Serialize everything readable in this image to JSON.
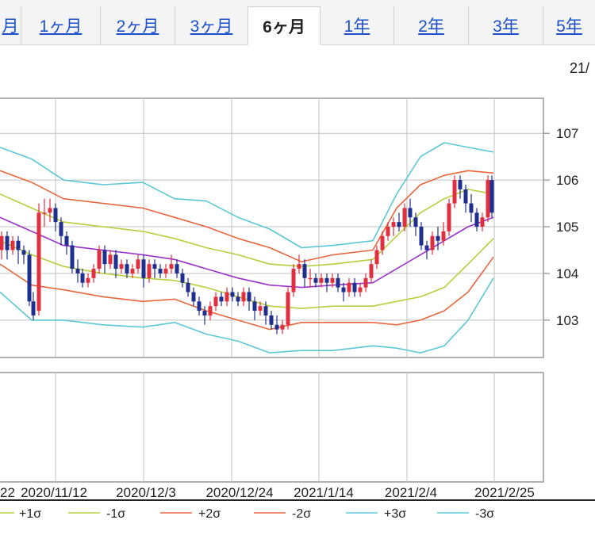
{
  "tabs": [
    {
      "label": "月",
      "active": false
    },
    {
      "label": "1ヶ月",
      "active": false
    },
    {
      "label": "2ヶ月",
      "active": false
    },
    {
      "label": "3ヶ月",
      "active": false
    },
    {
      "label": "6ヶ月",
      "active": true
    },
    {
      "label": "1年",
      "active": false
    },
    {
      "label": "2年",
      "active": false
    },
    {
      "label": "3年",
      "active": false
    },
    {
      "label": "5年",
      "active": false
    }
  ],
  "corner_date": "21/",
  "chart_data": {
    "type": "candlestick",
    "y_ticks": [
      "107",
      "106",
      "105",
      "104",
      "103"
    ],
    "ylim": [
      102.2,
      107.75
    ],
    "x_ticks": [
      "22",
      "2020/11/12",
      "2020/12/3",
      "2020/12/24",
      "2021/1/14",
      "2021/2/4",
      "2021/2/25"
    ],
    "grid": true,
    "legend": [
      {
        "label": "+1σ",
        "color": "#b7cf3c"
      },
      {
        "label": "-1σ",
        "color": "#b7cf3c"
      },
      {
        "label": "+2σ",
        "color": "#e8663d"
      },
      {
        "label": "-2σ",
        "color": "#e8663d"
      },
      {
        "label": "+3σ",
        "color": "#5cc8d6"
      },
      {
        "label": "-3σ",
        "color": "#5cc8d6"
      }
    ],
    "colors": {
      "up": "#e03040",
      "down": "#1f2f8f",
      "ma": "#9933cc",
      "grid": "#c0c0c0"
    },
    "bands": {
      "ma": [
        [
          0,
          105.2
        ],
        [
          40,
          104.9
        ],
        [
          80,
          104.6
        ],
        [
          130,
          104.5
        ],
        [
          180,
          104.4
        ],
        [
          220,
          104.3
        ],
        [
          260,
          104.1
        ],
        [
          300,
          103.9
        ],
        [
          340,
          103.75
        ],
        [
          380,
          103.7
        ],
        [
          420,
          103.75
        ],
        [
          470,
          103.8
        ],
        [
          500,
          104.1
        ],
        [
          530,
          104.4
        ],
        [
          560,
          104.7
        ],
        [
          590,
          105.0
        ],
        [
          622,
          105.2
        ]
      ],
      "up1": [
        [
          0,
          105.7
        ],
        [
          40,
          105.4
        ],
        [
          80,
          105.1
        ],
        [
          130,
          105.0
        ],
        [
          180,
          104.9
        ],
        [
          220,
          104.75
        ],
        [
          260,
          104.55
        ],
        [
          300,
          104.4
        ],
        [
          340,
          104.2
        ],
        [
          380,
          104.15
        ],
        [
          420,
          104.2
        ],
        [
          470,
          104.3
        ],
        [
          500,
          104.8
        ],
        [
          530,
          105.3
        ],
        [
          560,
          105.6
        ],
        [
          590,
          105.8
        ],
        [
          622,
          105.7
        ]
      ],
      "dn1": [
        [
          0,
          104.7
        ],
        [
          40,
          104.4
        ],
        [
          80,
          104.15
        ],
        [
          130,
          104.0
        ],
        [
          180,
          103.9
        ],
        [
          220,
          103.85
        ],
        [
          260,
          103.7
        ],
        [
          300,
          103.5
        ],
        [
          340,
          103.3
        ],
        [
          380,
          103.25
        ],
        [
          420,
          103.3
        ],
        [
          470,
          103.3
        ],
        [
          500,
          103.4
        ],
        [
          530,
          103.5
        ],
        [
          560,
          103.7
        ],
        [
          590,
          104.2
        ],
        [
          622,
          104.75
        ]
      ],
      "up2": [
        [
          0,
          106.2
        ],
        [
          40,
          105.95
        ],
        [
          80,
          105.6
        ],
        [
          130,
          105.5
        ],
        [
          180,
          105.4
        ],
        [
          220,
          105.2
        ],
        [
          260,
          105.0
        ],
        [
          300,
          104.75
        ],
        [
          340,
          104.55
        ],
        [
          380,
          104.25
        ],
        [
          420,
          104.4
        ],
        [
          470,
          104.5
        ],
        [
          500,
          105.4
        ],
        [
          530,
          105.9
        ],
        [
          560,
          106.1
        ],
        [
          590,
          106.2
        ],
        [
          622,
          106.15
        ]
      ],
      "dn2": [
        [
          0,
          104.2
        ],
        [
          40,
          103.75
        ],
        [
          80,
          103.65
        ],
        [
          130,
          103.5
        ],
        [
          180,
          103.4
        ],
        [
          220,
          103.45
        ],
        [
          260,
          103.2
        ],
        [
          300,
          103.0
        ],
        [
          340,
          102.8
        ],
        [
          380,
          102.95
        ],
        [
          420,
          102.95
        ],
        [
          470,
          102.95
        ],
        [
          500,
          102.9
        ],
        [
          530,
          103.0
        ],
        [
          560,
          103.2
        ],
        [
          590,
          103.6
        ],
        [
          622,
          104.35
        ]
      ],
      "up3": [
        [
          0,
          106.7
        ],
        [
          40,
          106.45
        ],
        [
          80,
          106.0
        ],
        [
          130,
          105.9
        ],
        [
          180,
          105.95
        ],
        [
          220,
          105.6
        ],
        [
          260,
          105.55
        ],
        [
          300,
          105.2
        ],
        [
          340,
          104.95
        ],
        [
          380,
          104.55
        ],
        [
          420,
          104.6
        ],
        [
          470,
          104.7
        ],
        [
          500,
          105.7
        ],
        [
          530,
          106.5
        ],
        [
          560,
          106.8
        ],
        [
          590,
          106.7
        ],
        [
          622,
          106.6
        ]
      ],
      "dn3": [
        [
          0,
          103.6
        ],
        [
          40,
          103.0
        ],
        [
          80,
          103.0
        ],
        [
          130,
          102.9
        ],
        [
          180,
          102.85
        ],
        [
          220,
          102.95
        ],
        [
          260,
          102.7
        ],
        [
          300,
          102.55
        ],
        [
          340,
          102.3
        ],
        [
          380,
          102.35
        ],
        [
          420,
          102.35
        ],
        [
          470,
          102.45
        ],
        [
          500,
          102.4
        ],
        [
          530,
          102.3
        ],
        [
          560,
          102.45
        ],
        [
          590,
          103.0
        ],
        [
          622,
          103.9
        ]
      ]
    },
    "candles": [
      [
        2,
        104.5,
        104.8,
        104.3,
        104.9
      ],
      [
        9,
        104.8,
        104.5,
        104.3,
        104.9
      ],
      [
        16,
        104.5,
        104.7,
        104.4,
        104.8
      ],
      [
        23,
        104.7,
        104.5,
        104.2,
        104.8
      ],
      [
        30,
        104.5,
        104.4,
        104.2,
        104.6
      ],
      [
        37,
        104.4,
        103.4,
        103.3,
        104.5
      ],
      [
        42,
        103.4,
        103.1,
        103.0,
        103.6
      ],
      [
        49,
        103.2,
        105.3,
        103.1,
        105.5
      ],
      [
        56,
        105.3,
        105.3,
        105.0,
        105.6
      ],
      [
        63,
        105.3,
        105.4,
        105.1,
        105.6
      ],
      [
        70,
        105.4,
        105.1,
        104.9,
        105.5
      ],
      [
        77,
        105.1,
        104.8,
        104.6,
        105.2
      ],
      [
        84,
        104.8,
        104.6,
        104.4,
        104.9
      ],
      [
        91,
        104.6,
        104.1,
        104.0,
        104.7
      ],
      [
        98,
        104.1,
        104.0,
        103.8,
        104.3
      ],
      [
        104,
        104.0,
        103.8,
        103.7,
        104.1
      ],
      [
        111,
        103.8,
        103.9,
        103.7,
        104.0
      ],
      [
        118,
        103.9,
        104.1,
        103.8,
        104.2
      ],
      [
        125,
        104.1,
        104.5,
        104.0,
        104.6
      ],
      [
        132,
        104.5,
        104.2,
        104.0,
        104.6
      ],
      [
        139,
        104.2,
        104.4,
        104.1,
        104.5
      ],
      [
        146,
        104.4,
        104.1,
        103.9,
        104.5
      ],
      [
        153,
        104.1,
        104.2,
        104.0,
        104.3
      ],
      [
        160,
        104.2,
        104.0,
        103.9,
        104.3
      ],
      [
        167,
        104.0,
        104.1,
        103.9,
        104.2
      ],
      [
        174,
        104.1,
        104.3,
        104.0,
        104.4
      ],
      [
        181,
        104.3,
        103.9,
        103.7,
        104.4
      ],
      [
        188,
        103.9,
        104.2,
        103.8,
        104.3
      ],
      [
        195,
        104.2,
        104.1,
        103.9,
        104.3
      ],
      [
        202,
        104.1,
        104.0,
        103.9,
        104.2
      ],
      [
        209,
        104.0,
        104.1,
        103.9,
        104.2
      ],
      [
        216,
        104.1,
        104.2,
        104.0,
        104.4
      ],
      [
        223,
        104.2,
        104.0,
        103.9,
        104.3
      ],
      [
        230,
        104.0,
        103.8,
        103.7,
        104.1
      ],
      [
        237,
        103.8,
        103.6,
        103.5,
        103.9
      ],
      [
        244,
        103.6,
        103.4,
        103.3,
        103.7
      ],
      [
        251,
        103.4,
        103.2,
        103.1,
        103.5
      ],
      [
        258,
        103.2,
        103.1,
        102.9,
        103.3
      ],
      [
        265,
        103.1,
        103.3,
        103.0,
        103.4
      ],
      [
        272,
        103.3,
        103.5,
        103.2,
        103.6
      ],
      [
        279,
        103.5,
        103.4,
        103.3,
        103.6
      ],
      [
        286,
        103.4,
        103.6,
        103.3,
        103.7
      ],
      [
        293,
        103.6,
        103.5,
        103.4,
        103.7
      ],
      [
        300,
        103.5,
        103.4,
        103.3,
        103.6
      ],
      [
        307,
        103.4,
        103.6,
        103.3,
        103.7
      ],
      [
        314,
        103.6,
        103.4,
        103.2,
        103.7
      ],
      [
        321,
        103.4,
        103.2,
        103.0,
        103.5
      ],
      [
        328,
        103.2,
        103.3,
        103.1,
        103.4
      ],
      [
        335,
        103.3,
        103.1,
        102.9,
        103.4
      ],
      [
        342,
        103.1,
        102.9,
        102.8,
        103.2
      ],
      [
        349,
        102.9,
        102.8,
        102.7,
        103.1
      ],
      [
        356,
        102.8,
        102.9,
        102.7,
        103.0
      ],
      [
        363,
        102.9,
        103.6,
        102.8,
        103.7
      ],
      [
        370,
        103.6,
        104.1,
        103.5,
        104.2
      ],
      [
        377,
        104.1,
        104.2,
        104.0,
        104.4
      ],
      [
        384,
        104.2,
        103.9,
        103.7,
        104.3
      ],
      [
        391,
        103.9,
        103.9,
        103.7,
        104.1
      ],
      [
        398,
        103.9,
        103.8,
        103.7,
        104.0
      ],
      [
        405,
        103.8,
        103.9,
        103.7,
        104.0
      ],
      [
        412,
        103.9,
        103.8,
        103.6,
        104.0
      ],
      [
        419,
        103.8,
        103.9,
        103.7,
        104.0
      ],
      [
        426,
        103.9,
        103.7,
        103.6,
        104.0
      ],
      [
        433,
        103.7,
        103.6,
        103.4,
        103.8
      ],
      [
        440,
        103.6,
        103.8,
        103.5,
        103.9
      ],
      [
        447,
        103.8,
        103.6,
        103.5,
        103.9
      ],
      [
        454,
        103.6,
        103.7,
        103.5,
        103.8
      ],
      [
        461,
        103.7,
        103.9,
        103.6,
        104.0
      ],
      [
        468,
        103.9,
        104.2,
        103.8,
        104.3
      ],
      [
        475,
        104.2,
        104.5,
        104.1,
        104.6
      ],
      [
        482,
        104.5,
        104.8,
        104.4,
        104.9
      ],
      [
        489,
        104.8,
        105.0,
        104.7,
        105.1
      ],
      [
        496,
        105.0,
        105.1,
        104.8,
        105.2
      ],
      [
        503,
        105.1,
        105.0,
        104.9,
        105.3
      ],
      [
        510,
        105.0,
        105.4,
        104.9,
        105.5
      ],
      [
        517,
        105.4,
        105.2,
        105.0,
        105.6
      ],
      [
        524,
        105.2,
        105.0,
        104.8,
        105.3
      ],
      [
        531,
        105.0,
        104.6,
        104.5,
        105.1
      ],
      [
        538,
        104.6,
        104.5,
        104.3,
        104.7
      ],
      [
        545,
        104.5,
        104.8,
        104.4,
        104.9
      ],
      [
        552,
        104.8,
        104.7,
        104.5,
        105.0
      ],
      [
        559,
        104.7,
        104.9,
        104.6,
        105.1
      ],
      [
        566,
        104.9,
        105.5,
        104.8,
        105.6
      ],
      [
        573,
        105.5,
        106.0,
        105.4,
        106.1
      ],
      [
        580,
        106.0,
        105.8,
        105.6,
        106.1
      ],
      [
        587,
        105.8,
        105.5,
        105.3,
        105.9
      ],
      [
        594,
        105.5,
        105.3,
        105.1,
        105.7
      ],
      [
        601,
        105.3,
        105.0,
        104.9,
        105.4
      ],
      [
        608,
        105.0,
        105.2,
        104.9,
        105.3
      ],
      [
        615,
        105.2,
        106.0,
        105.1,
        106.1
      ],
      [
        620,
        106.0,
        105.3,
        105.2,
        106.1
      ]
    ]
  }
}
